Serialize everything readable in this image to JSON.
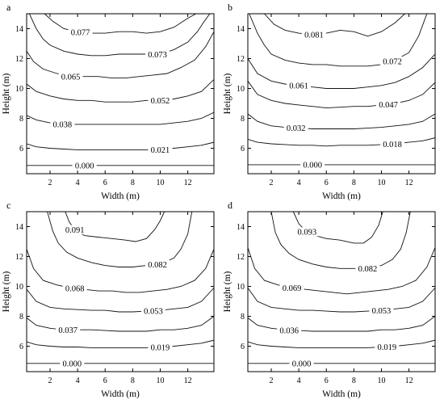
{
  "chart_data": [
    {
      "type": "line",
      "panel_label": "a",
      "xlabel": "Width (m)",
      "ylabel": "Height (m)",
      "xlim": [
        0.3,
        13.9
      ],
      "ylim": [
        4.3,
        15.0
      ],
      "xticks": [
        2,
        4,
        6,
        8,
        10,
        12
      ],
      "yticks": [
        6,
        8,
        10,
        12,
        14
      ],
      "contours": [
        {
          "label": "0.077",
          "label_x": 4.2,
          "x": [
            1.6,
            2.2,
            3,
            4,
            5,
            6,
            7,
            8,
            9,
            10,
            11,
            12,
            12.6
          ],
          "y": [
            15.0,
            14.5,
            14.0,
            13.8,
            13.7,
            13.7,
            13.8,
            13.8,
            13.7,
            13.8,
            14.1,
            14.7,
            15.0
          ]
        },
        {
          "label": "0.073",
          "label_x": 9.8,
          "x": [
            0.5,
            1,
            1.5,
            2,
            3,
            4,
            5,
            6,
            7,
            8,
            9,
            10,
            11,
            12,
            12.7,
            13.2,
            13.6
          ],
          "y": [
            15.0,
            14.0,
            13.3,
            12.9,
            12.5,
            12.3,
            12.2,
            12.2,
            12.3,
            12.3,
            12.3,
            12.3,
            12.6,
            13.1,
            13.8,
            14.5,
            15.0
          ]
        },
        {
          "label": "0.065",
          "label_x": 3.5,
          "x": [
            0.3,
            0.8,
            1.5,
            2.5,
            3.5,
            4.5,
            5.5,
            6.5,
            7.5,
            8.5,
            9.5,
            10.5,
            11.5,
            12.5,
            13.3,
            13.9
          ],
          "y": [
            12.5,
            11.8,
            11.3,
            11.0,
            10.8,
            10.8,
            10.8,
            10.7,
            10.7,
            10.8,
            10.9,
            11.0,
            11.4,
            11.9,
            12.8,
            13.8
          ]
        },
        {
          "label": "0.052",
          "label_x": 10.0,
          "x": [
            0.3,
            1,
            2,
            3,
            4,
            5,
            6,
            7,
            8,
            9,
            10,
            11,
            12,
            13,
            13.9
          ],
          "y": [
            10.3,
            9.8,
            9.5,
            9.3,
            9.2,
            9.2,
            9.1,
            9.1,
            9.1,
            9.2,
            9.2,
            9.3,
            9.5,
            9.8,
            10.6
          ]
        },
        {
          "label": "0.038",
          "label_x": 2.9,
          "x": [
            0.3,
            1,
            2,
            3,
            4,
            5,
            6,
            7,
            8,
            9,
            10,
            11,
            12,
            13,
            13.9
          ],
          "y": [
            8.2,
            7.9,
            7.7,
            7.6,
            7.6,
            7.6,
            7.6,
            7.6,
            7.6,
            7.6,
            7.6,
            7.7,
            7.8,
            8.0,
            8.4
          ]
        },
        {
          "label": "0.021",
          "label_x": 10.0,
          "x": [
            0.3,
            1,
            2,
            3,
            4,
            5,
            6,
            7,
            8,
            9,
            10,
            11,
            12,
            13,
            13.9
          ],
          "y": [
            6.3,
            6.1,
            6.0,
            5.95,
            5.9,
            5.9,
            5.9,
            5.9,
            5.9,
            5.9,
            5.9,
            6.0,
            6.1,
            6.2,
            6.4
          ]
        },
        {
          "label": "0.000",
          "label_x": 4.5,
          "x": [
            0.3,
            13.9
          ],
          "y": [
            4.85,
            4.85
          ]
        }
      ]
    },
    {
      "type": "line",
      "panel_label": "b",
      "xlabel": "Width (m)",
      "ylabel": "Height (m)",
      "xlim": [
        0.3,
        13.9
      ],
      "ylim": [
        4.3,
        15.0
      ],
      "xticks": [
        2,
        4,
        6,
        8,
        10,
        12
      ],
      "yticks": [
        6,
        8,
        10,
        12,
        14
      ],
      "contours": [
        {
          "label": "0.081",
          "label_x": 5.1,
          "x": [
            1.5,
            2.2,
            3,
            4,
            5,
            6,
            7,
            8,
            9,
            10,
            11,
            11.7
          ],
          "y": [
            15.0,
            14.3,
            13.9,
            13.7,
            13.6,
            13.7,
            13.9,
            13.8,
            13.5,
            13.8,
            14.4,
            15.0
          ]
        },
        {
          "label": "0.072",
          "label_x": 10.8,
          "x": [
            0.4,
            1,
            1.5,
            2,
            3,
            4,
            5,
            6,
            7,
            8,
            9,
            10,
            11,
            12,
            12.7,
            13.3
          ],
          "y": [
            15.0,
            13.7,
            12.9,
            12.3,
            11.9,
            11.7,
            11.6,
            11.6,
            11.5,
            11.5,
            11.5,
            11.6,
            11.9,
            12.4,
            13.5,
            15.0
          ]
        },
        {
          "label": "0.061",
          "label_x": 4.0,
          "x": [
            0.3,
            1,
            2,
            3,
            4,
            5,
            6,
            7,
            8,
            9,
            10,
            11,
            12,
            13,
            13.9
          ],
          "y": [
            12.0,
            11.0,
            10.5,
            10.3,
            10.2,
            10.1,
            10.0,
            10.0,
            10.0,
            10.1,
            10.2,
            10.4,
            10.8,
            11.4,
            12.3
          ]
        },
        {
          "label": "0.047",
          "label_x": 10.5,
          "x": [
            0.3,
            1,
            2,
            3,
            4,
            5,
            6,
            7,
            8,
            9,
            10,
            11,
            12,
            13,
            13.9
          ],
          "y": [
            10.5,
            9.6,
            9.2,
            9.0,
            8.9,
            8.8,
            8.7,
            8.75,
            8.8,
            8.8,
            8.9,
            9.0,
            9.2,
            9.6,
            10.4
          ]
        },
        {
          "label": "0.032",
          "label_x": 3.8,
          "x": [
            0.3,
            1,
            2,
            3,
            4,
            5,
            6,
            7,
            8,
            9,
            10,
            11,
            12,
            13,
            13.9
          ],
          "y": [
            8.3,
            7.8,
            7.5,
            7.4,
            7.35,
            7.3,
            7.3,
            7.3,
            7.3,
            7.35,
            7.4,
            7.5,
            7.6,
            7.8,
            8.3
          ]
        },
        {
          "label": "0.018",
          "label_x": 10.8,
          "x": [
            0.3,
            1,
            2,
            3,
            4,
            5,
            6,
            7,
            8,
            9,
            10,
            11,
            12,
            13,
            13.9
          ],
          "y": [
            6.6,
            6.4,
            6.3,
            6.25,
            6.2,
            6.2,
            6.15,
            6.2,
            6.2,
            6.2,
            6.25,
            6.3,
            6.4,
            6.5,
            6.7
          ]
        },
        {
          "label": "0.000",
          "label_x": 5.0,
          "x": [
            0.3,
            13.9
          ],
          "y": [
            4.9,
            4.9
          ]
        }
      ]
    },
    {
      "type": "line",
      "panel_label": "c",
      "xlabel": "Width (m)",
      "ylabel": "Height (m)",
      "xlim": [
        0.3,
        13.9
      ],
      "ylim": [
        4.3,
        15.0
      ],
      "xticks": [
        2,
        4,
        6,
        8,
        10,
        12
      ],
      "yticks": [
        6,
        8,
        10,
        12,
        14
      ],
      "contours": [
        {
          "label": "0.091",
          "label_x": 3.8,
          "x": [
            3.1,
            3.4,
            3.8,
            4.5,
            5.5,
            6.5,
            7.5,
            8.2,
            9,
            9.6,
            10.0,
            10.3
          ],
          "y": [
            15.0,
            14.3,
            13.8,
            13.4,
            13.3,
            13.2,
            13.1,
            13.0,
            13.2,
            13.8,
            14.4,
            15.0
          ]
        },
        {
          "label": "0.082",
          "label_x": 9.8,
          "x": [
            1.8,
            2.2,
            2.6,
            3.2,
            4,
            5,
            6,
            7,
            8,
            9,
            10,
            11,
            11.5,
            12,
            12.3
          ],
          "y": [
            15.0,
            13.7,
            12.9,
            12.3,
            11.9,
            11.6,
            11.4,
            11.3,
            11.3,
            11.4,
            11.5,
            11.9,
            12.5,
            13.5,
            15.0
          ]
        },
        {
          "label": "0.068",
          "label_x": 3.8,
          "x": [
            0.3,
            0.8,
            1.5,
            2.5,
            3.5,
            4.5,
            5.5,
            6.5,
            7.5,
            8.5,
            9.5,
            10.5,
            11.5,
            12.5,
            13.3,
            13.9
          ],
          "y": [
            12.5,
            11.2,
            10.4,
            10.1,
            9.9,
            9.8,
            9.7,
            9.7,
            9.6,
            9.6,
            9.7,
            9.8,
            10.0,
            10.4,
            11.2,
            12.5
          ]
        },
        {
          "label": "0.053",
          "label_x": 9.5,
          "x": [
            0.3,
            1,
            2,
            3,
            4,
            5,
            6,
            7,
            8,
            9,
            10,
            11,
            12,
            13,
            13.9
          ],
          "y": [
            9.8,
            9.0,
            8.6,
            8.5,
            8.45,
            8.4,
            8.4,
            8.3,
            8.3,
            8.35,
            8.4,
            8.5,
            8.6,
            9.0,
            9.9
          ]
        },
        {
          "label": "0.037",
          "label_x": 3.3,
          "x": [
            0.3,
            1,
            2,
            3,
            4,
            5,
            6,
            7,
            8,
            9,
            10,
            11,
            12,
            13,
            13.9
          ],
          "y": [
            7.9,
            7.4,
            7.2,
            7.1,
            7.1,
            7.1,
            7.05,
            7.0,
            7.0,
            7.0,
            7.1,
            7.1,
            7.2,
            7.4,
            8.0
          ]
        },
        {
          "label": "0.019",
          "label_x": 10.0,
          "x": [
            0.3,
            1,
            2,
            3,
            4,
            5,
            6,
            7,
            8,
            9,
            10,
            11,
            12,
            13,
            13.9
          ],
          "y": [
            6.3,
            6.1,
            6.0,
            5.95,
            5.95,
            5.9,
            5.9,
            5.9,
            5.9,
            5.9,
            5.95,
            6.0,
            6.1,
            6.2,
            6.4
          ]
        },
        {
          "label": "0.000",
          "label_x": 3.6,
          "x": [
            0.3,
            13.9
          ],
          "y": [
            4.85,
            4.85
          ]
        }
      ]
    },
    {
      "type": "line",
      "panel_label": "d",
      "xlabel": "Width (m)",
      "ylabel": "Height (m)",
      "xlim": [
        0.3,
        13.9
      ],
      "ylim": [
        4.3,
        15.0
      ],
      "xticks": [
        2,
        4,
        6,
        8,
        10,
        12
      ],
      "yticks": [
        6,
        8,
        10,
        12,
        14
      ],
      "contours": [
        {
          "label": "0.093",
          "label_x": 4.6,
          "x": [
            3.6,
            4.0,
            4.5,
            5.2,
            6,
            7,
            8,
            8.7,
            9.3,
            9.8,
            10.1
          ],
          "y": [
            15.0,
            14.2,
            13.7,
            13.4,
            13.2,
            13.1,
            12.9,
            12.9,
            13.3,
            14.1,
            15.0
          ]
        },
        {
          "label": "0.082",
          "label_x": 9.0,
          "x": [
            2.0,
            2.3,
            2.7,
            3.3,
            4,
            5,
            6,
            7,
            8,
            9,
            10,
            10.8,
            11.4,
            11.8,
            12.1
          ],
          "y": [
            15.0,
            13.6,
            12.8,
            12.2,
            11.8,
            11.5,
            11.3,
            11.2,
            11.2,
            11.2,
            11.4,
            11.8,
            12.5,
            13.6,
            15.0
          ]
        },
        {
          "label": "0.069",
          "label_x": 3.5,
          "x": [
            0.3,
            0.8,
            1.5,
            2.5,
            3.5,
            4.5,
            5.5,
            6.5,
            7.5,
            8.5,
            9.5,
            10.5,
            11.5,
            12.5,
            13.3,
            13.9
          ],
          "y": [
            12.6,
            11.2,
            10.4,
            10.1,
            9.9,
            9.8,
            9.7,
            9.6,
            9.5,
            9.6,
            9.7,
            9.8,
            10.0,
            10.4,
            11.3,
            12.6
          ]
        },
        {
          "label": "0.053",
          "label_x": 10.0,
          "x": [
            0.3,
            1,
            2,
            3,
            4,
            5,
            6,
            7,
            8,
            9,
            10,
            11,
            12,
            13,
            13.9
          ],
          "y": [
            9.9,
            9.0,
            8.6,
            8.5,
            8.4,
            8.4,
            8.35,
            8.3,
            8.3,
            8.35,
            8.4,
            8.5,
            8.6,
            9.0,
            9.9
          ]
        },
        {
          "label": "0.036",
          "label_x": 3.3,
          "x": [
            0.3,
            1,
            2,
            3,
            4,
            5,
            6,
            7,
            8,
            9,
            10,
            11,
            12,
            13,
            13.9
          ],
          "y": [
            7.9,
            7.4,
            7.2,
            7.1,
            7.05,
            7.0,
            7.0,
            7.0,
            7.0,
            7.0,
            7.1,
            7.1,
            7.2,
            7.4,
            8.0
          ]
        },
        {
          "label": "0.019",
          "label_x": 10.4,
          "x": [
            0.3,
            1,
            2,
            3,
            4,
            5,
            6,
            7,
            8,
            9,
            10,
            11,
            12,
            13,
            13.9
          ],
          "y": [
            6.3,
            6.1,
            6.0,
            5.95,
            5.9,
            5.9,
            5.9,
            5.9,
            5.9,
            5.9,
            5.95,
            6.0,
            6.1,
            6.2,
            6.4
          ]
        },
        {
          "label": "0.000",
          "label_x": 4.2,
          "x": [
            0.3,
            13.9
          ],
          "y": [
            4.85,
            4.85
          ]
        }
      ]
    }
  ]
}
